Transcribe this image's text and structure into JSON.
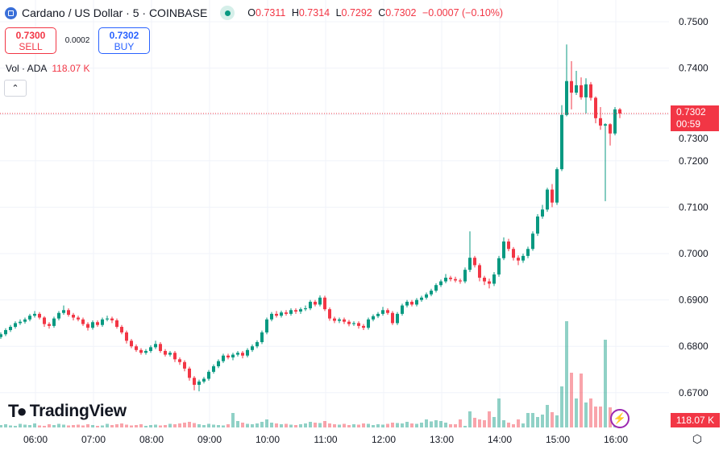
{
  "header": {
    "symbol_title": "Cardano / US Dollar · 5 · COINBASE",
    "ohlc": {
      "o_label": "O",
      "o": "0.7311",
      "h_label": "H",
      "h": "0.7314",
      "l_label": "L",
      "l": "0.7292",
      "c_label": "C",
      "c": "0.7302",
      "change": "−0.0007 (−0.10%)"
    }
  },
  "trade": {
    "sell_price": "0.7300",
    "sell_label": "SELL",
    "spread": "0.0002",
    "buy_price": "0.7302",
    "buy_label": "BUY"
  },
  "volume_legend": {
    "label": "Vol · ADA",
    "value": "118.07 K"
  },
  "price_label": {
    "price": "0.7302",
    "countdown": "00:59"
  },
  "volume_label": "118.07 K",
  "logo_text": "TradingView",
  "colors": {
    "up": "#089981",
    "down": "#f23645",
    "grid": "#f0f3fa",
    "buy": "#2962ff"
  },
  "chart_data": {
    "type": "candlestick",
    "interval": "5m",
    "y_ticks": [
      "0.7500",
      "0.7400",
      "0.7300",
      "0.7200",
      "0.7100",
      "0.7000",
      "0.6900",
      "0.6800",
      "0.6700"
    ],
    "x_ticks": [
      "06:00",
      "07:00",
      "08:00",
      "09:00",
      "10:00",
      "11:00",
      "12:00",
      "13:00",
      "14:00",
      "15:00",
      "16:00"
    ],
    "current_price": 0.7302,
    "open": [
      0.682,
      0.6826,
      0.6835,
      0.6842,
      0.685,
      0.6853,
      0.6858,
      0.6866,
      0.687,
      0.6862,
      0.6848,
      0.6844,
      0.686,
      0.6872,
      0.6878,
      0.6868,
      0.6862,
      0.6858,
      0.6848,
      0.684,
      0.6852,
      0.6846,
      0.6858,
      0.686,
      0.6856,
      0.6842,
      0.683,
      0.6812,
      0.68,
      0.6792,
      0.6786,
      0.679,
      0.6798,
      0.6805,
      0.679,
      0.6782,
      0.6786,
      0.6772,
      0.6766,
      0.6752,
      0.6732,
      0.6717,
      0.6724,
      0.673,
      0.6745,
      0.6757,
      0.6768,
      0.678,
      0.6776,
      0.6782,
      0.6786,
      0.678,
      0.6792,
      0.68,
      0.6809,
      0.683,
      0.6858,
      0.687,
      0.6866,
      0.6873,
      0.687,
      0.6878,
      0.6875,
      0.688,
      0.6882,
      0.6896,
      0.689,
      0.6905,
      0.688,
      0.686,
      0.6855,
      0.6858,
      0.6853,
      0.6848,
      0.685,
      0.6844,
      0.684,
      0.6858,
      0.6865,
      0.687,
      0.6878,
      0.6872,
      0.685,
      0.687,
      0.6888,
      0.6896,
      0.689,
      0.69,
      0.6905,
      0.6912,
      0.692,
      0.6932,
      0.694,
      0.6948,
      0.6945,
      0.6942,
      0.694,
      0.6965,
      0.6991,
      0.6975,
      0.6948,
      0.694,
      0.6935,
      0.6955,
      0.699,
      0.7026,
      0.701,
      0.6991,
      0.6985,
      0.6995,
      0.701,
      0.7043,
      0.708,
      0.7095,
      0.7138,
      0.711,
      0.7182,
      0.7299,
      0.7372,
      0.7347,
      0.7363,
      0.7337,
      0.7365,
      0.7336,
      0.7292,
      0.7276,
      0.7279,
      0.7259,
      0.7311
    ],
    "high": [
      0.683,
      0.6839,
      0.6846,
      0.6854,
      0.6858,
      0.6862,
      0.687,
      0.6876,
      0.6874,
      0.6865,
      0.6852,
      0.6864,
      0.6876,
      0.6888,
      0.6882,
      0.6872,
      0.6866,
      0.6862,
      0.6852,
      0.6856,
      0.6856,
      0.6862,
      0.6866,
      0.6864,
      0.686,
      0.6846,
      0.6834,
      0.6816,
      0.6804,
      0.6796,
      0.6794,
      0.6802,
      0.6812,
      0.6809,
      0.6794,
      0.679,
      0.679,
      0.6776,
      0.677,
      0.6756,
      0.6736,
      0.6728,
      0.6734,
      0.6749,
      0.6761,
      0.6772,
      0.6784,
      0.6784,
      0.6786,
      0.679,
      0.679,
      0.6796,
      0.6804,
      0.6813,
      0.6834,
      0.6862,
      0.6874,
      0.6876,
      0.6877,
      0.6878,
      0.6882,
      0.6882,
      0.6884,
      0.6888,
      0.69,
      0.69,
      0.691,
      0.6909,
      0.6884,
      0.6864,
      0.6862,
      0.6862,
      0.6857,
      0.6854,
      0.6854,
      0.6848,
      0.6862,
      0.6869,
      0.6874,
      0.6885,
      0.6882,
      0.6876,
      0.6874,
      0.6892,
      0.69,
      0.69,
      0.6904,
      0.6909,
      0.6916,
      0.6924,
      0.6936,
      0.6944,
      0.6956,
      0.6952,
      0.695,
      0.6946,
      0.697,
      0.7048,
      0.6995,
      0.6979,
      0.6952,
      0.6946,
      0.696,
      0.6995,
      0.7035,
      0.7032,
      0.7014,
      0.6996,
      0.7,
      0.7015,
      0.7048,
      0.7085,
      0.7105,
      0.7142,
      0.715,
      0.7186,
      0.732,
      0.7451,
      0.7415,
      0.7394,
      0.738,
      0.7378,
      0.737,
      0.7339,
      0.7316,
      0.7281,
      0.7281,
      0.7316,
      0.7314
    ],
    "low": [
      0.6816,
      0.6822,
      0.6831,
      0.6838,
      0.6846,
      0.6849,
      0.6854,
      0.6862,
      0.6858,
      0.6842,
      0.6838,
      0.684,
      0.6856,
      0.6868,
      0.6864,
      0.6856,
      0.6854,
      0.6844,
      0.6834,
      0.6836,
      0.6842,
      0.6842,
      0.6854,
      0.685,
      0.6838,
      0.6826,
      0.6806,
      0.6796,
      0.6788,
      0.6782,
      0.6782,
      0.6786,
      0.6794,
      0.6786,
      0.6778,
      0.6778,
      0.6766,
      0.676,
      0.6746,
      0.6726,
      0.6705,
      0.6703,
      0.672,
      0.6726,
      0.6741,
      0.6753,
      0.6764,
      0.6772,
      0.677,
      0.6778,
      0.6774,
      0.6776,
      0.6788,
      0.6796,
      0.6805,
      0.6826,
      0.6854,
      0.6862,
      0.6862,
      0.6866,
      0.6866,
      0.687,
      0.687,
      0.6876,
      0.6878,
      0.6886,
      0.6886,
      0.6876,
      0.6855,
      0.685,
      0.685,
      0.6848,
      0.6843,
      0.6844,
      0.6838,
      0.6835,
      0.6836,
      0.6854,
      0.6861,
      0.6866,
      0.6868,
      0.6846,
      0.6846,
      0.6866,
      0.6884,
      0.6886,
      0.6886,
      0.6896,
      0.6901,
      0.6908,
      0.6916,
      0.6928,
      0.6936,
      0.694,
      0.6938,
      0.6935,
      0.6936,
      0.696,
      0.697,
      0.694,
      0.6932,
      0.6925,
      0.693,
      0.695,
      0.6986,
      0.7005,
      0.6985,
      0.6975,
      0.698,
      0.699,
      0.7006,
      0.7038,
      0.7075,
      0.709,
      0.71,
      0.7105,
      0.7178,
      0.7296,
      0.7311,
      0.7342,
      0.7332,
      0.7302,
      0.733,
      0.7281,
      0.7267,
      0.7113,
      0.7233,
      0.7255,
      0.7292
    ],
    "close": [
      0.6826,
      0.6835,
      0.6842,
      0.685,
      0.6853,
      0.6858,
      0.6866,
      0.687,
      0.6862,
      0.6848,
      0.6844,
      0.686,
      0.6872,
      0.6878,
      0.6868,
      0.6862,
      0.6858,
      0.6848,
      0.684,
      0.6852,
      0.6846,
      0.6858,
      0.686,
      0.6856,
      0.6842,
      0.683,
      0.6812,
      0.68,
      0.6792,
      0.6786,
      0.679,
      0.6798,
      0.6805,
      0.679,
      0.6782,
      0.6786,
      0.6772,
      0.6766,
      0.6752,
      0.6732,
      0.6717,
      0.6724,
      0.673,
      0.6745,
      0.6757,
      0.6768,
      0.678,
      0.6776,
      0.6782,
      0.6786,
      0.678,
      0.6792,
      0.68,
      0.6809,
      0.683,
      0.6858,
      0.687,
      0.6866,
      0.6873,
      0.687,
      0.6878,
      0.6875,
      0.688,
      0.6882,
      0.6896,
      0.689,
      0.6905,
      0.688,
      0.686,
      0.6855,
      0.6858,
      0.6853,
      0.6848,
      0.685,
      0.6844,
      0.684,
      0.6858,
      0.6865,
      0.687,
      0.6878,
      0.6872,
      0.685,
      0.687,
      0.6888,
      0.6896,
      0.689,
      0.69,
      0.6905,
      0.6912,
      0.692,
      0.6932,
      0.694,
      0.6948,
      0.6945,
      0.6942,
      0.694,
      0.6965,
      0.6991,
      0.6975,
      0.6948,
      0.694,
      0.6935,
      0.6955,
      0.699,
      0.7026,
      0.701,
      0.6991,
      0.6985,
      0.6995,
      0.701,
      0.7043,
      0.708,
      0.7095,
      0.7138,
      0.711,
      0.7182,
      0.7299,
      0.7372,
      0.7347,
      0.7363,
      0.7337,
      0.7365,
      0.7336,
      0.7292,
      0.7276,
      0.7279,
      0.7259,
      0.7311,
      0.7302
    ],
    "volume_k": [
      60,
      80,
      50,
      40,
      90,
      70,
      60,
      100,
      50,
      40,
      80,
      60,
      90,
      70,
      50,
      60,
      70,
      50,
      80,
      60,
      40,
      50,
      90,
      60,
      80,
      100,
      70,
      50,
      60,
      80,
      40,
      60,
      70,
      50,
      60,
      90,
      80,
      100,
      120,
      140,
      110,
      80,
      60,
      90,
      70,
      60,
      50,
      80,
      360,
      160,
      120,
      90,
      80,
      100,
      140,
      200,
      120,
      100,
      80,
      90,
      70,
      60,
      80,
      100,
      140,
      120,
      110,
      160,
      100,
      80,
      70,
      90,
      60,
      80,
      70,
      100,
      90,
      60,
      80,
      70,
      90,
      120,
      110,
      100,
      140,
      100,
      90,
      120,
      200,
      150,
      180,
      160,
      120,
      80,
      80,
      200,
      40,
      400,
      240,
      200,
      180,
      400,
      260,
      720,
      180,
      120,
      80,
      200,
      100,
      360,
      360,
      260,
      320,
      560,
      380,
      300,
      1020,
      2640,
      1360,
      720,
      1340,
      620,
      720,
      520,
      520,
      2180,
      500,
      200,
      118.07
    ]
  }
}
